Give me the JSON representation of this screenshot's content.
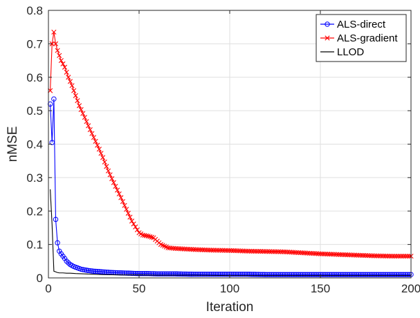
{
  "chart_data": {
    "type": "line",
    "title": "",
    "xlabel": "Iteration",
    "ylabel": "nMSE",
    "xlim": [
      0,
      200
    ],
    "ylim": [
      0,
      0.8
    ],
    "xticks": [
      "0",
      "50",
      "100",
      "150",
      "200"
    ],
    "yticks": [
      "0",
      "0.1",
      "0.2",
      "0.3",
      "0.4",
      "0.5",
      "0.6",
      "0.7",
      "0.8"
    ],
    "grid": true,
    "legend_position": "top-right",
    "series": [
      {
        "name": "ALS-direct",
        "color": "#0000ff",
        "marker": "circle",
        "x": [
          1,
          2,
          3,
          4,
          5,
          6,
          7,
          8,
          9,
          10,
          11,
          12,
          13,
          14,
          15,
          16,
          17,
          18,
          20,
          22,
          25,
          28,
          30,
          35,
          40,
          45,
          50,
          55,
          60,
          70,
          80,
          90,
          100,
          110,
          120,
          130,
          140,
          150,
          160,
          170,
          180,
          190,
          200
        ],
        "y": [
          0.52,
          0.405,
          0.535,
          0.175,
          0.105,
          0.08,
          0.072,
          0.065,
          0.058,
          0.05,
          0.045,
          0.04,
          0.037,
          0.034,
          0.032,
          0.03,
          0.028,
          0.026,
          0.024,
          0.022,
          0.02,
          0.019,
          0.018,
          0.016,
          0.015,
          0.014,
          0.013,
          0.013,
          0.012,
          0.012,
          0.011,
          0.011,
          0.011,
          0.011,
          0.01,
          0.01,
          0.01,
          0.01,
          0.01,
          0.01,
          0.01,
          0.01,
          0.01
        ]
      },
      {
        "name": "ALS-gradient",
        "color": "#ff0000",
        "marker": "cross",
        "x": [
          1,
          2,
          3,
          4,
          5,
          7,
          9,
          11,
          13,
          15,
          17,
          20,
          22,
          25,
          28,
          30,
          33,
          36,
          40,
          43,
          46,
          50,
          52,
          55,
          58,
          60,
          62,
          64,
          66,
          70,
          80,
          90,
          100,
          110,
          120,
          130,
          140,
          150,
          160,
          170,
          180,
          190,
          200
        ],
        "y": [
          0.56,
          0.7,
          0.735,
          0.7,
          0.68,
          0.65,
          0.63,
          0.6,
          0.575,
          0.545,
          0.515,
          0.48,
          0.455,
          0.42,
          0.385,
          0.36,
          0.32,
          0.285,
          0.24,
          0.205,
          0.17,
          0.135,
          0.128,
          0.125,
          0.12,
          0.11,
          0.1,
          0.095,
          0.09,
          0.088,
          0.085,
          0.083,
          0.082,
          0.08,
          0.079,
          0.078,
          0.075,
          0.072,
          0.07,
          0.068,
          0.066,
          0.065,
          0.065
        ]
      },
      {
        "name": "LLOD",
        "color": "#000000",
        "marker": "none",
        "x": [
          1,
          2,
          3,
          4,
          5,
          6,
          8,
          10,
          12,
          15,
          20,
          25,
          30,
          40,
          50,
          60,
          80,
          100,
          150,
          200
        ],
        "y": [
          0.265,
          0.16,
          0.02,
          0.018,
          0.016,
          0.015,
          0.015,
          0.014,
          0.014,
          0.013,
          0.012,
          0.011,
          0.01,
          0.009,
          0.009,
          0.008,
          0.008,
          0.007,
          0.007,
          0.007
        ]
      }
    ]
  }
}
